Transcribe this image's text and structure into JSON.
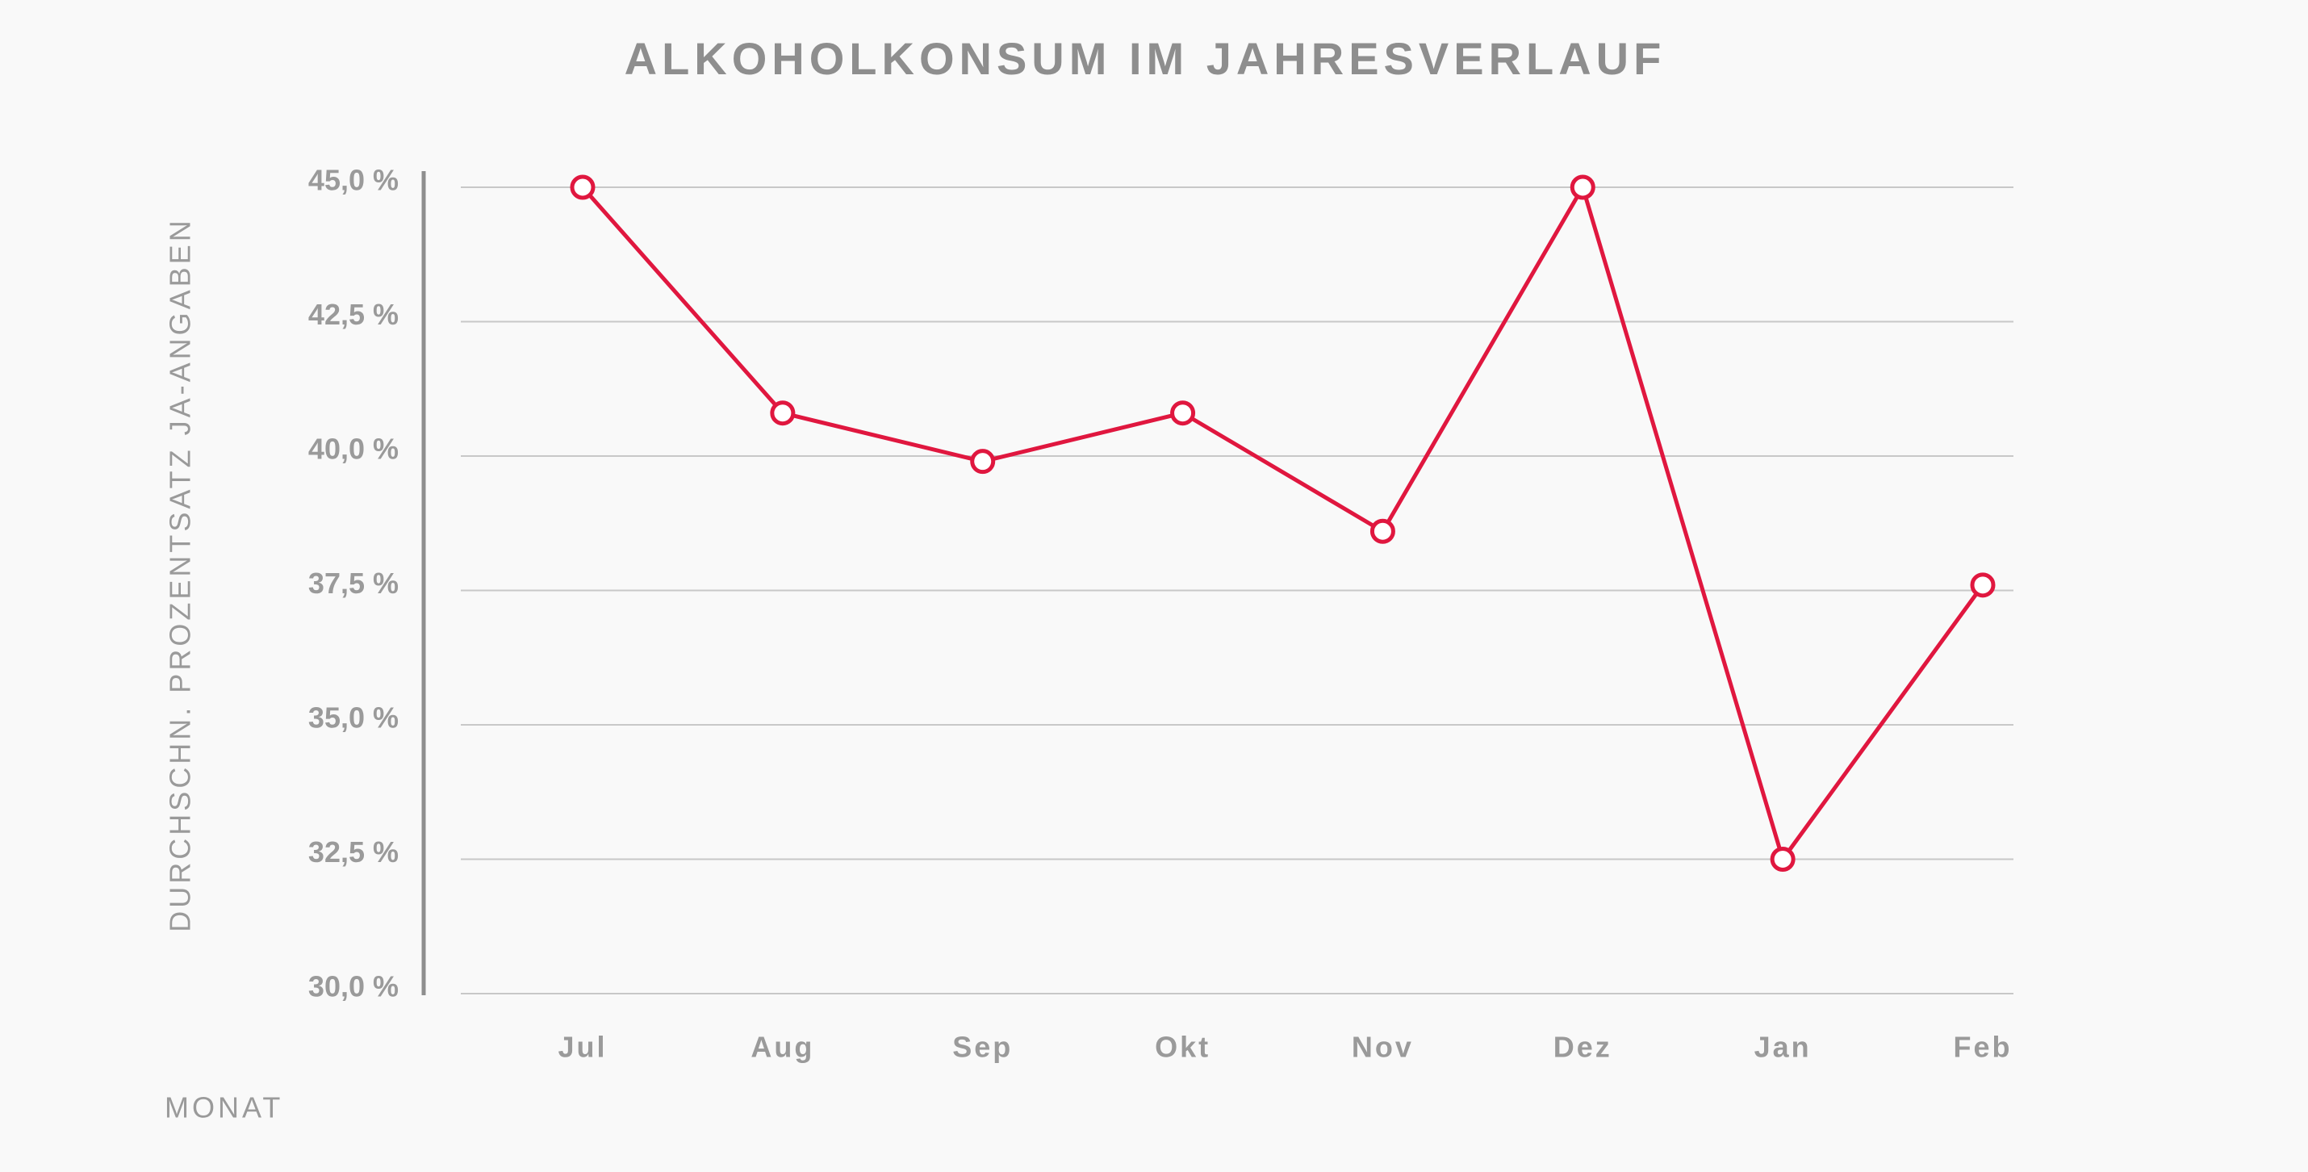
{
  "chart_data": {
    "type": "line",
    "title": "ALKOHOLKONSUM IM JAHRESVERLAUF",
    "y_label": "DURCHSCHN. PROZENTSATZ JA-ANGABEN",
    "x_label": "MONAT",
    "categories": [
      "Jul",
      "Aug",
      "Sep",
      "Okt",
      "Nov",
      "Dez",
      "Jan",
      "Feb"
    ],
    "values": [
      45.0,
      40.8,
      39.9,
      40.8,
      38.6,
      45.0,
      32.5,
      37.6
    ],
    "color": "#e0173f",
    "ylim": [
      30,
      45
    ],
    "yticks": [
      {
        "value": 30,
        "label": "30,0 %"
      },
      {
        "value": 32.5,
        "label": "32,5 %"
      },
      {
        "value": 35,
        "label": "35,0 %"
      },
      {
        "value": 37.5,
        "label": "37,5 %"
      },
      {
        "value": 40,
        "label": "40,0 %"
      },
      {
        "value": 42.5,
        "label": "42,5 %"
      },
      {
        "value": 45,
        "label": "45,0 %"
      }
    ],
    "grid": true
  }
}
